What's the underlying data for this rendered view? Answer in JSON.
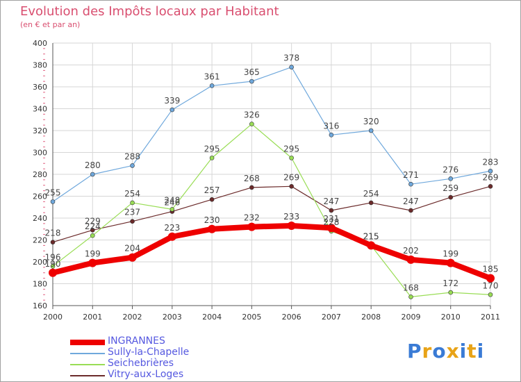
{
  "chart_data": {
    "type": "line",
    "title": "Evolution des Impôts locaux par Habitant",
    "subtitle": "(en € et par an)",
    "xlabel": "",
    "ylabel": "",
    "ylim": [
      160,
      400
    ],
    "yticks": [
      160,
      180,
      200,
      220,
      240,
      260,
      280,
      300,
      320,
      340,
      360,
      380,
      400
    ],
    "grid": true,
    "legend_position": "bottom-left",
    "categories": [
      "2000",
      "2001",
      "2002",
      "2003",
      "2004",
      "2005",
      "2006",
      "2007",
      "2008",
      "2009",
      "2010",
      "2011"
    ],
    "series": [
      {
        "name": "Vitry-aux-Loges",
        "color": "#6b2a2a",
        "values": [
          218,
          229,
          237,
          246,
          257,
          268,
          269,
          247,
          254,
          247,
          259,
          269
        ],
        "labels": [
          "218",
          "229",
          "237",
          "246",
          "257",
          "268",
          "269",
          "247",
          "254",
          "247",
          "259",
          "269"
        ]
      },
      {
        "name": "Seichebrières",
        "color": "#99dd55",
        "values": [
          196,
          224,
          254,
          248,
          295,
          326,
          295,
          228,
          215,
          168,
          172,
          170
        ],
        "labels": [
          "196",
          "224",
          "254",
          "248",
          "295",
          "326",
          "295",
          "228",
          "215",
          "168",
          "172",
          "170"
        ]
      },
      {
        "name": "Sully-la-Chapelle",
        "color": "#6fa8dc",
        "values": [
          255,
          280,
          288,
          339,
          361,
          365,
          378,
          316,
          320,
          271,
          276,
          283
        ],
        "labels": [
          "255",
          "280",
          "288",
          "339",
          "361",
          "365",
          "378",
          "316",
          "320",
          "271",
          "276",
          "283"
        ]
      },
      {
        "name": "INGRANNES",
        "color": "#ee0000",
        "values": [
          190,
          199,
          204,
          223,
          230,
          232,
          233,
          231,
          215,
          202,
          199,
          185
        ],
        "labels": [
          "190",
          "199",
          "204",
          "223",
          "230",
          "232",
          "233",
          "231",
          "215",
          "202",
          "199",
          "185"
        ]
      }
    ]
  },
  "legend": {
    "items": [
      {
        "label": "INGRANNES",
        "color": "#ee0000"
      },
      {
        "label": "Sully-la-Chapelle",
        "color": "#6fa8dc"
      },
      {
        "label": "Seichebrières",
        "color": "#99dd55"
      },
      {
        "label": "Vitry-aux-Loges",
        "color": "#6b2a2a"
      }
    ]
  },
  "logo": {
    "text": "Proxiti",
    "letters": [
      {
        "ch": "P",
        "color": "#3a7bd5"
      },
      {
        "ch": "r",
        "color": "#e8a317"
      },
      {
        "ch": "o",
        "color": "#3a7bd5"
      },
      {
        "ch": "x",
        "color": "#e8a317"
      },
      {
        "ch": "i",
        "color": "#3a7bd5"
      },
      {
        "ch": "t",
        "color": "#e8a317"
      },
      {
        "ch": "i",
        "color": "#3a7bd5"
      }
    ]
  }
}
